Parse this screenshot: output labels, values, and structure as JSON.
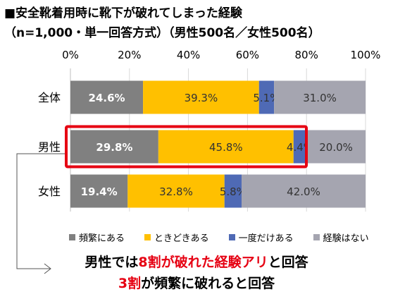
{
  "title_line1": "■安全靴着用時に靴下が破れてしまった経験",
  "title_line2": "（n=1,000・単一回答方式）（男性500名／女性500名）",
  "chart_data": {
    "type": "bar",
    "orientation": "horizontal",
    "stacked": true,
    "normalized": true,
    "categories": [
      "全体",
      "男性",
      "女性"
    ],
    "x_ticks": [
      "0%",
      "20%",
      "40%",
      "60%",
      "80%",
      "100%"
    ],
    "xlim": [
      0,
      100
    ],
    "grid": true,
    "legend_position": "bottom",
    "highlight_category": "男性",
    "highlight_color": "#e60012",
    "series": [
      {
        "name": "頻繁にある",
        "color": "#808080",
        "values": [
          24.6,
          29.8,
          19.4
        ],
        "labels": [
          "24.6%",
          "29.8%",
          "19.4%"
        ],
        "label_color": "white"
      },
      {
        "name": "ときどきある",
        "color": "#ffc000",
        "values": [
          39.3,
          45.8,
          32.8
        ],
        "labels": [
          "39.3%",
          "45.8%",
          "32.8%"
        ],
        "label_color": "dark"
      },
      {
        "name": "一度だけある",
        "color": "#4f6ab5",
        "values": [
          5.1,
          4.4,
          5.8
        ],
        "labels": [
          "5.1%",
          "4.4%",
          "5.8%"
        ],
        "label_color": "dark"
      },
      {
        "name": "経験はない",
        "color": "#a5a5b0",
        "values": [
          31.0,
          20.0,
          42.0
        ],
        "labels": [
          "31.0%",
          "20.0%",
          "42.0%"
        ],
        "label_color": "dark"
      }
    ]
  },
  "note_line1": {
    "a": "男性では",
    "b": "8割が破れた経験アリ",
    "c": "と回答"
  },
  "note_line2": {
    "a": "3割",
    "b": "が頻繁に破れると回答"
  }
}
